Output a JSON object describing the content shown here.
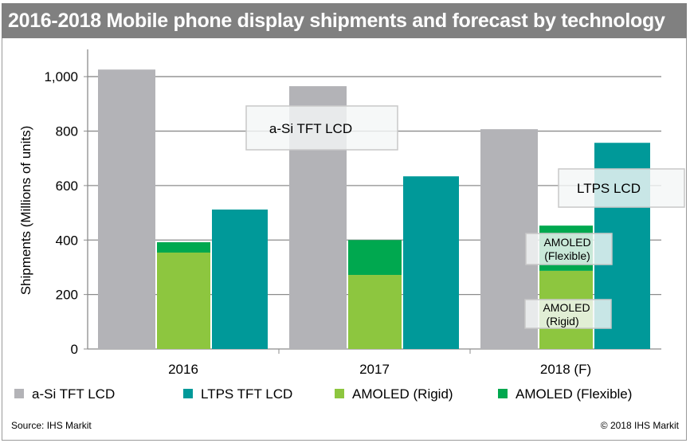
{
  "chart_data": {
    "type": "bar",
    "stacked_series": [
      "AMOLED (Rigid)",
      "AMOLED (Flexible)"
    ],
    "title": "2016-2018 Mobile phone display shipments and forecast by technology",
    "xlabel": "",
    "ylabel": "Shipments (Millions of units)",
    "ylim": [
      0,
      1100
    ],
    "yticks": [
      0,
      200,
      400,
      600,
      800,
      1000
    ],
    "ytick_labels": [
      "0",
      "200",
      "400",
      "600",
      "800",
      "1,000"
    ],
    "grid": true,
    "legend_position": "bottom",
    "categories": [
      "2016",
      "2017",
      "2018 (F)"
    ],
    "series": [
      {
        "name": "a-Si TFT LCD",
        "color": "#b3b3b7",
        "values": [
          1026,
          965,
          807
        ]
      },
      {
        "name": "LTPS TFT LCD",
        "color": "#009999",
        "values": [
          512,
          634,
          757
        ]
      },
      {
        "name": "AMOLED (Rigid)",
        "color": "#8dc63f",
        "values": [
          354,
          272,
          287
        ]
      },
      {
        "name": "AMOLED (Flexible)",
        "color": "#00a84f",
        "values": [
          38,
          128,
          166
        ]
      }
    ],
    "annotations": [
      {
        "text": "a-Si TFT LCD"
      },
      {
        "text": "LTPS LCD"
      },
      {
        "text": "AMOLED (Flexible)",
        "lines": [
          "AMOLED",
          "(Flexible)"
        ]
      },
      {
        "text": "AMOLED (Rigid)",
        "lines": [
          "AMOLED",
          "(Rigid)"
        ]
      }
    ],
    "source": "Source: IHS Markit",
    "copyright": "© 2018 IHS Markit"
  }
}
